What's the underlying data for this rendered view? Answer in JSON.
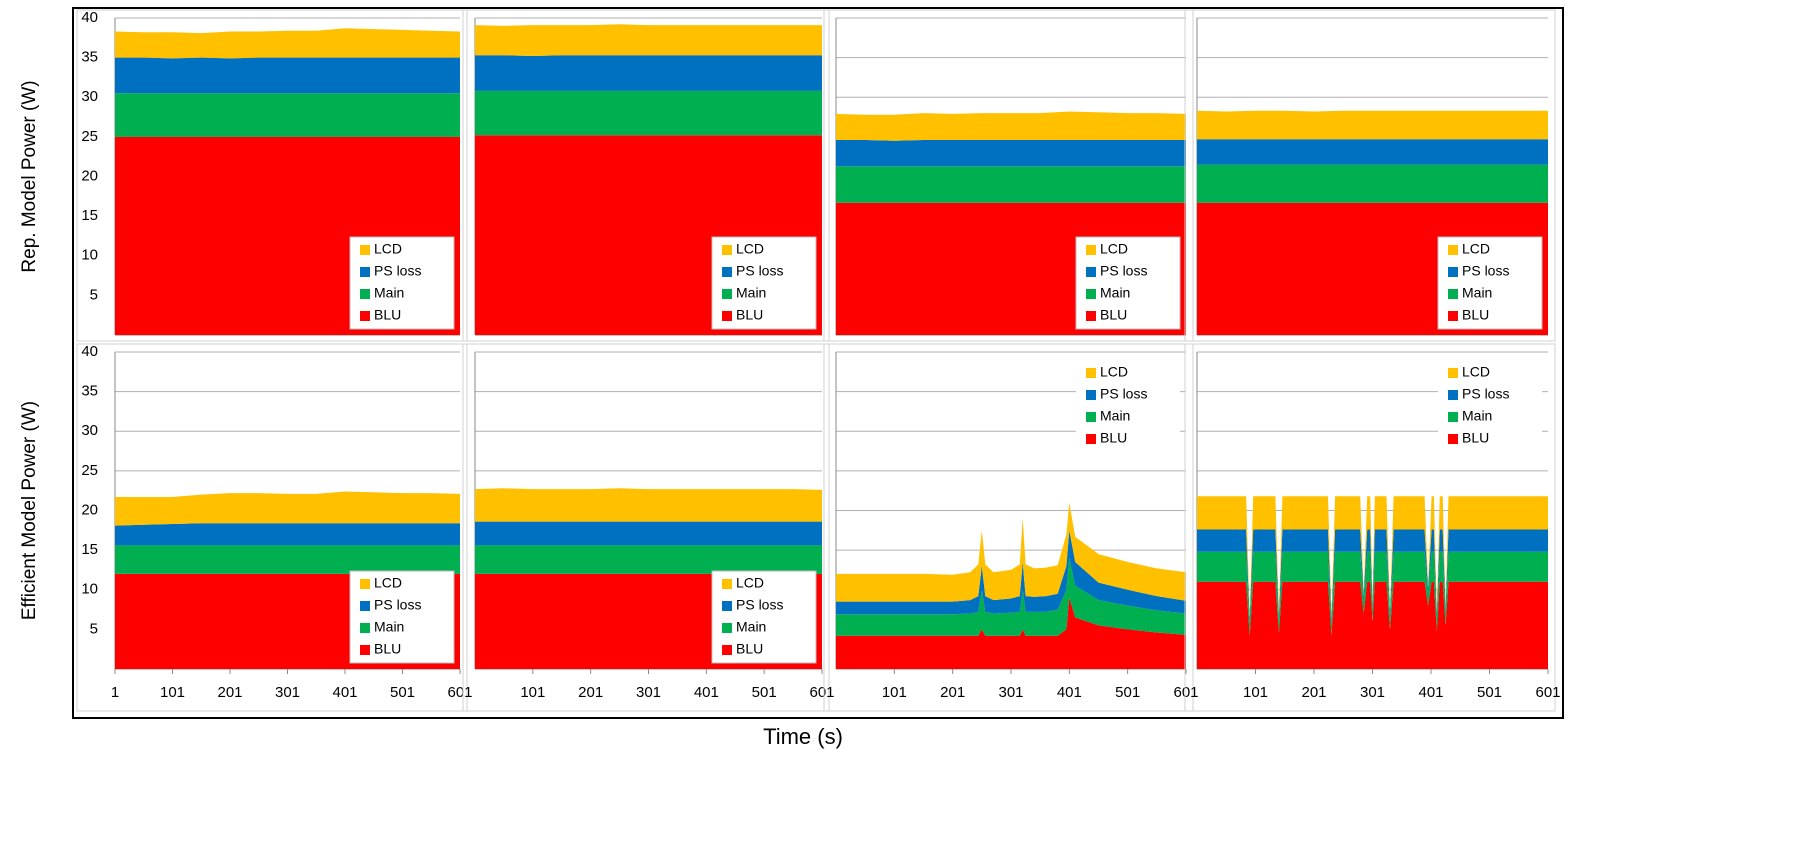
{
  "xlabel": "Time (s)",
  "chart_data": [
    {
      "type": "area",
      "stacked": true,
      "ylabel": "Rep. Model Power (W)",
      "legend": "lower right",
      "grid": true,
      "ylim": [
        0,
        40
      ],
      "yticks": [
        5,
        10,
        15,
        20,
        25,
        30,
        35,
        40
      ],
      "xlim": [
        1,
        601
      ],
      "x": [
        1,
        51,
        101,
        151,
        201,
        251,
        301,
        351,
        401,
        451,
        501,
        551,
        601
      ],
      "series": [
        {
          "name": "BLU",
          "color": "#ff0000",
          "values": [
            25,
            25,
            25,
            25,
            25,
            25,
            25,
            25,
            25,
            25,
            25,
            25,
            25
          ]
        },
        {
          "name": "Main",
          "color": "#00b050",
          "values": [
            5.5,
            5.5,
            5.5,
            5.5,
            5.5,
            5.5,
            5.5,
            5.5,
            5.5,
            5.5,
            5.5,
            5.5,
            5.5
          ]
        },
        {
          "name": "PS loss",
          "color": "#0070c0",
          "values": [
            4.5,
            4.5,
            4.4,
            4.5,
            4.4,
            4.5,
            4.5,
            4.5,
            4.5,
            4.5,
            4.5,
            4.5,
            4.5
          ]
        },
        {
          "name": "LCD",
          "color": "#ffc000",
          "values": [
            3.3,
            3.2,
            3.3,
            3.1,
            3.4,
            3.3,
            3.4,
            3.4,
            3.7,
            3.6,
            3.5,
            3.4,
            3.3
          ]
        }
      ]
    },
    {
      "type": "area",
      "stacked": true,
      "legend": "lower right",
      "grid": true,
      "ylim": [
        0,
        40
      ],
      "yticks": [
        5,
        10,
        15,
        20,
        25,
        30,
        35,
        40
      ],
      "xlim": [
        1,
        601
      ],
      "x": [
        1,
        51,
        101,
        151,
        201,
        251,
        301,
        351,
        401,
        451,
        501,
        551,
        601
      ],
      "series": [
        {
          "name": "BLU",
          "color": "#ff0000",
          "values": [
            25.2,
            25.2,
            25.2,
            25.2,
            25.2,
            25.2,
            25.2,
            25.2,
            25.2,
            25.2,
            25.2,
            25.2,
            25.2
          ]
        },
        {
          "name": "Main",
          "color": "#00b050",
          "values": [
            5.6,
            5.6,
            5.6,
            5.6,
            5.6,
            5.6,
            5.6,
            5.6,
            5.6,
            5.6,
            5.6,
            5.6,
            5.6
          ]
        },
        {
          "name": "PS loss",
          "color": "#0070c0",
          "values": [
            4.5,
            4.5,
            4.4,
            4.5,
            4.5,
            4.5,
            4.5,
            4.5,
            4.5,
            4.5,
            4.5,
            4.5,
            4.5
          ]
        },
        {
          "name": "LCD",
          "color": "#ffc000",
          "values": [
            3.8,
            3.7,
            3.9,
            3.8,
            3.8,
            3.9,
            3.8,
            3.8,
            3.8,
            3.8,
            3.8,
            3.8,
            3.8
          ]
        }
      ]
    },
    {
      "type": "area",
      "stacked": true,
      "legend": "lower right",
      "grid": true,
      "ylim": [
        0,
        40
      ],
      "yticks": [
        5,
        10,
        15,
        20,
        25,
        30,
        35,
        40
      ],
      "xlim": [
        1,
        601
      ],
      "x": [
        1,
        51,
        101,
        151,
        201,
        251,
        301,
        351,
        401,
        451,
        501,
        551,
        601
      ],
      "series": [
        {
          "name": "BLU",
          "color": "#ff0000",
          "values": [
            16.7,
            16.7,
            16.7,
            16.7,
            16.7,
            16.7,
            16.7,
            16.7,
            16.7,
            16.7,
            16.7,
            16.7,
            16.7
          ]
        },
        {
          "name": "Main",
          "color": "#00b050",
          "values": [
            4.6,
            4.6,
            4.6,
            4.6,
            4.6,
            4.6,
            4.6,
            4.6,
            4.6,
            4.6,
            4.6,
            4.6,
            4.6
          ]
        },
        {
          "name": "PS loss",
          "color": "#0070c0",
          "values": [
            3.3,
            3.3,
            3.2,
            3.3,
            3.3,
            3.3,
            3.3,
            3.3,
            3.3,
            3.3,
            3.3,
            3.3,
            3.3
          ]
        },
        {
          "name": "LCD",
          "color": "#ffc000",
          "values": [
            3.3,
            3.2,
            3.3,
            3.4,
            3.3,
            3.4,
            3.4,
            3.4,
            3.6,
            3.5,
            3.4,
            3.4,
            3.3
          ]
        }
      ]
    },
    {
      "type": "area",
      "stacked": true,
      "legend": "lower right",
      "grid": true,
      "ylim": [
        0,
        40
      ],
      "yticks": [
        5,
        10,
        15,
        20,
        25,
        30,
        35,
        40
      ],
      "xlim": [
        1,
        601
      ],
      "x": [
        1,
        51,
        101,
        151,
        201,
        251,
        301,
        351,
        401,
        451,
        501,
        551,
        601
      ],
      "series": [
        {
          "name": "BLU",
          "color": "#ff0000",
          "values": [
            16.7,
            16.7,
            16.7,
            16.7,
            16.7,
            16.7,
            16.7,
            16.7,
            16.7,
            16.7,
            16.7,
            16.7,
            16.7
          ]
        },
        {
          "name": "Main",
          "color": "#00b050",
          "values": [
            4.8,
            4.8,
            4.8,
            4.8,
            4.8,
            4.8,
            4.8,
            4.8,
            4.8,
            4.8,
            4.8,
            4.8,
            4.8
          ]
        },
        {
          "name": "PS loss",
          "color": "#0070c0",
          "values": [
            3.2,
            3.2,
            3.2,
            3.2,
            3.2,
            3.2,
            3.2,
            3.2,
            3.2,
            3.2,
            3.2,
            3.2,
            3.2
          ]
        },
        {
          "name": "LCD",
          "color": "#ffc000",
          "values": [
            3.6,
            3.5,
            3.6,
            3.6,
            3.5,
            3.6,
            3.6,
            3.6,
            3.6,
            3.6,
            3.6,
            3.6,
            3.6
          ]
        }
      ]
    },
    {
      "type": "area",
      "stacked": true,
      "ylabel": "Efficient Model Power (W)",
      "legend": "lower right",
      "grid": true,
      "ylim": [
        0,
        40
      ],
      "yticks": [
        5,
        10,
        15,
        20,
        25,
        30,
        35,
        40
      ],
      "xlim": [
        1,
        601
      ],
      "xticks": [
        1,
        101,
        201,
        301,
        401,
        501,
        601
      ],
      "x": [
        1,
        51,
        101,
        151,
        201,
        251,
        301,
        351,
        401,
        451,
        501,
        551,
        601
      ],
      "series": [
        {
          "name": "BLU",
          "color": "#ff0000",
          "values": [
            12,
            12,
            12,
            12,
            12,
            12,
            12,
            12,
            12,
            12,
            12,
            12,
            12
          ]
        },
        {
          "name": "Main",
          "color": "#00b050",
          "values": [
            3.6,
            3.6,
            3.6,
            3.6,
            3.6,
            3.6,
            3.6,
            3.6,
            3.6,
            3.6,
            3.6,
            3.6,
            3.6
          ]
        },
        {
          "name": "PS loss",
          "color": "#0070c0",
          "values": [
            2.5,
            2.6,
            2.7,
            2.8,
            2.8,
            2.8,
            2.8,
            2.8,
            2.8,
            2.8,
            2.8,
            2.8,
            2.8
          ]
        },
        {
          "name": "LCD",
          "color": "#ffc000",
          "values": [
            3.6,
            3.5,
            3.4,
            3.6,
            3.8,
            3.8,
            3.7,
            3.7,
            4,
            3.9,
            3.8,
            3.8,
            3.7
          ]
        }
      ]
    },
    {
      "type": "area",
      "stacked": true,
      "legend": "lower right",
      "grid": true,
      "ylim": [
        0,
        40
      ],
      "yticks": [
        5,
        10,
        15,
        20,
        25,
        30,
        35,
        40
      ],
      "xlim": [
        1,
        601
      ],
      "xticks": [
        101,
        201,
        301,
        401,
        501,
        601
      ],
      "x": [
        1,
        51,
        101,
        151,
        201,
        251,
        301,
        351,
        401,
        451,
        501,
        551,
        601
      ],
      "series": [
        {
          "name": "BLU",
          "color": "#ff0000",
          "values": [
            12,
            12,
            12,
            12,
            12,
            12,
            12,
            12,
            12,
            12,
            12,
            12,
            12
          ]
        },
        {
          "name": "Main",
          "color": "#00b050",
          "values": [
            3.6,
            3.6,
            3.6,
            3.6,
            3.6,
            3.6,
            3.6,
            3.6,
            3.6,
            3.6,
            3.6,
            3.6,
            3.6
          ]
        },
        {
          "name": "PS loss",
          "color": "#0070c0",
          "values": [
            3,
            3,
            3,
            3,
            3,
            3,
            3,
            3,
            3,
            3,
            3,
            3,
            3
          ]
        },
        {
          "name": "LCD",
          "color": "#ffc000",
          "values": [
            4.1,
            4.2,
            4.1,
            4.1,
            4.1,
            4.2,
            4.1,
            4.1,
            4.1,
            4.1,
            4.1,
            4.1,
            4
          ]
        }
      ]
    },
    {
      "type": "area",
      "stacked": true,
      "legend": "upper right",
      "grid": true,
      "ylim": [
        0,
        40
      ],
      "yticks": [
        5,
        10,
        15,
        20,
        25,
        30,
        35,
        40
      ],
      "xlim": [
        1,
        601
      ],
      "xticks": [
        101,
        201,
        301,
        401,
        501,
        601
      ],
      "x": [
        1,
        51,
        101,
        151,
        201,
        231,
        245,
        251,
        257,
        271,
        301,
        316,
        321,
        326,
        341,
        361,
        381,
        396,
        401,
        411,
        451,
        501,
        551,
        601
      ],
      "series": [
        {
          "name": "BLU",
          "color": "#ff0000",
          "values": [
            4.2,
            4.2,
            4.2,
            4.2,
            4.2,
            4.2,
            4.2,
            5,
            4.2,
            4.2,
            4.2,
            4.2,
            5,
            4.2,
            4.2,
            4.2,
            4.2,
            5,
            9,
            6.5,
            5.5,
            5,
            4.6,
            4.3
          ]
        },
        {
          "name": "Main",
          "color": "#00b050",
          "values": [
            2.7,
            2.7,
            2.7,
            2.7,
            2.7,
            2.8,
            3,
            5,
            3,
            2.8,
            2.9,
            3,
            5,
            3,
            3,
            3,
            3.3,
            5,
            5,
            4,
            3.2,
            3,
            2.8,
            2.7
          ]
        },
        {
          "name": "PS loss",
          "color": "#0070c0",
          "values": [
            1.6,
            1.6,
            1.6,
            1.6,
            1.6,
            1.7,
            2,
            3,
            2,
            1.7,
            1.8,
            2,
            3.5,
            2,
            1.9,
            2,
            2,
            3,
            3.5,
            3,
            2.2,
            2,
            1.8,
            1.6
          ]
        },
        {
          "name": "LCD",
          "color": "#ffc000",
          "values": [
            3.5,
            3.5,
            3.5,
            3.5,
            3.4,
            3.5,
            4,
            4.5,
            4,
            3.5,
            3.6,
            4,
            5.5,
            4,
            3.6,
            3.6,
            3.6,
            4,
            3.5,
            3.2,
            3.6,
            3.5,
            3.5,
            3.6
          ]
        }
      ]
    },
    {
      "type": "area",
      "stacked": true,
      "legend": "upper right",
      "grid": true,
      "ylim": [
        0,
        40
      ],
      "yticks": [
        5,
        10,
        15,
        20,
        25,
        30,
        35,
        40
      ],
      "xlim": [
        1,
        601
      ],
      "xticks": [
        101,
        201,
        301,
        401,
        501,
        601
      ],
      "x": [
        1,
        85,
        91,
        97,
        135,
        141,
        147,
        225,
        231,
        237,
        280,
        286,
        292,
        297,
        301,
        305,
        325,
        331,
        337,
        390,
        396,
        402,
        406,
        411,
        416,
        421,
        426,
        431,
        500,
        601
      ],
      "series": [
        {
          "name": "BLU",
          "color": "#ff0000",
          "values": [
            11,
            11,
            4.2,
            11,
            11,
            4.5,
            11,
            11,
            4.3,
            11,
            11,
            7,
            11,
            11,
            6,
            11,
            11,
            5,
            11,
            11,
            8,
            11,
            11,
            4.8,
            11,
            11,
            5.5,
            11,
            11,
            11
          ]
        },
        {
          "name": "Main",
          "color": "#00b050",
          "values": [
            3.8,
            3.8,
            1.5,
            3.8,
            3.8,
            1.5,
            3.8,
            3.8,
            1.5,
            3.8,
            3.8,
            1.5,
            3.8,
            3.8,
            1.5,
            3.8,
            3.8,
            1.5,
            3.8,
            3.8,
            1.5,
            3.8,
            3.8,
            1.5,
            3.8,
            3.8,
            1.5,
            3.8,
            3.8,
            3.8
          ]
        },
        {
          "name": "PS loss",
          "color": "#0070c0",
          "values": [
            2.8,
            2.8,
            0.8,
            2.8,
            2.8,
            0.8,
            2.8,
            2.8,
            0.8,
            2.8,
            2.8,
            0.8,
            2.8,
            2.8,
            0.8,
            2.8,
            2.8,
            0.8,
            2.8,
            2.8,
            0.8,
            2.8,
            2.8,
            0.8,
            2.8,
            2.8,
            0.8,
            2.8,
            2.8,
            2.8
          ]
        },
        {
          "name": "LCD",
          "color": "#ffc000",
          "values": [
            4.2,
            4.2,
            0.5,
            4.2,
            4.2,
            0.5,
            4.2,
            4.2,
            0.5,
            4.2,
            4.2,
            0.5,
            4.2,
            4.2,
            0.5,
            4.2,
            4.2,
            0.5,
            4.2,
            4.2,
            0.5,
            4.2,
            4.2,
            0.5,
            4.2,
            4.2,
            0.5,
            4.2,
            4.2,
            4.2
          ]
        }
      ]
    }
  ]
}
